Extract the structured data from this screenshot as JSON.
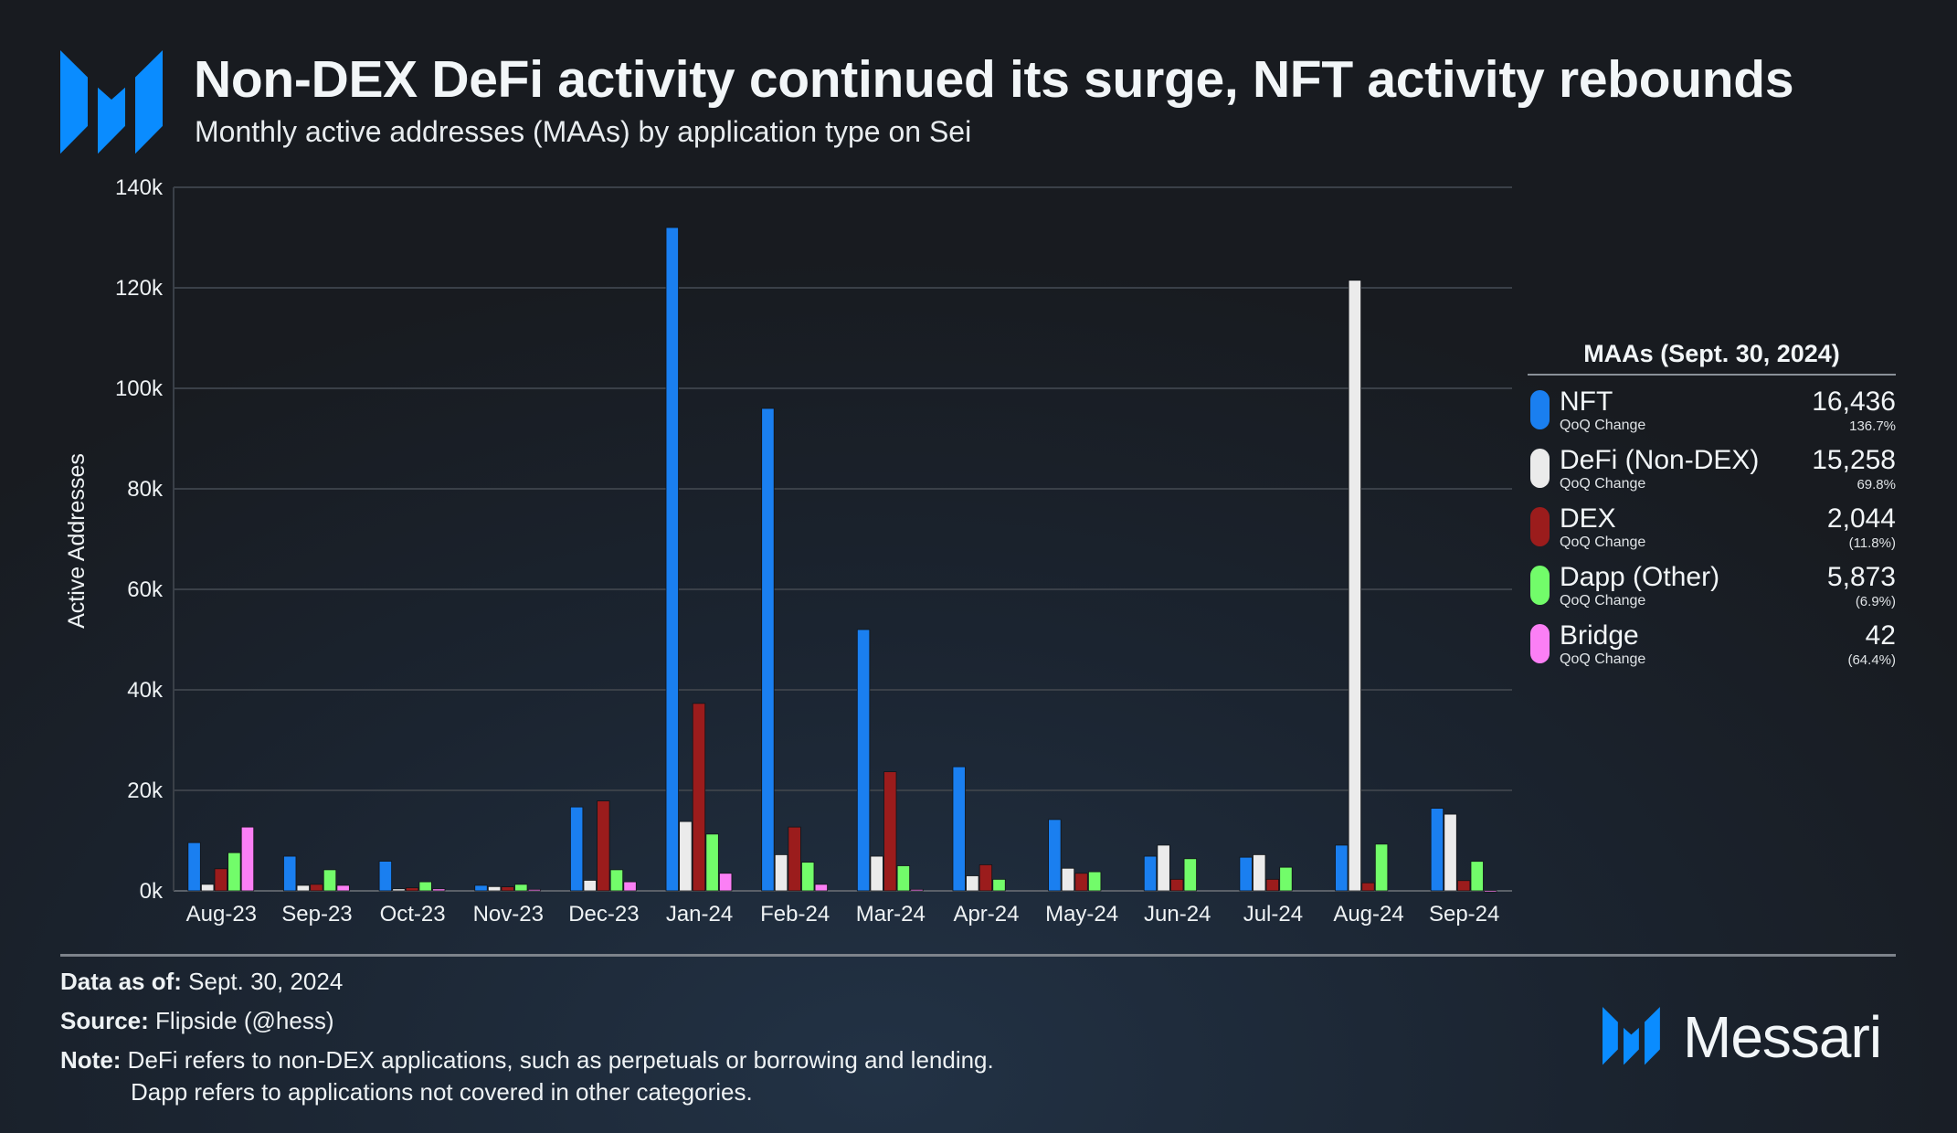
{
  "header": {
    "title": "Non-DEX DeFi activity continued its surge, NFT activity rebounds",
    "subtitle": "Monthly active addresses (MAAs) by application type on Sei",
    "logo": "Messari M logo"
  },
  "chart_data": {
    "type": "bar",
    "title": "Non-DEX DeFi activity continued its surge, NFT activity rebounds",
    "subtitle": "Monthly active addresses (MAAs) by application type on Sei",
    "xlabel": "",
    "ylabel": "Active Addresses",
    "ylim": [
      0,
      140000
    ],
    "yticks": [
      0,
      20000,
      40000,
      60000,
      80000,
      100000,
      120000,
      140000
    ],
    "ytick_labels": [
      "0k",
      "20k",
      "40k",
      "60k",
      "80k",
      "100k",
      "120k",
      "140k"
    ],
    "grid": true,
    "categories": [
      "Aug-23",
      "Sep-23",
      "Oct-23",
      "Nov-23",
      "Dec-23",
      "Jan-24",
      "Feb-24",
      "Mar-24",
      "Apr-24",
      "May-24",
      "Jun-24",
      "Jul-24",
      "Aug-24",
      "Sep-24"
    ],
    "series": [
      {
        "name": "NFT",
        "color": "#1a7ff0",
        "values": [
          9600,
          6900,
          5900,
          1100,
          16700,
          132000,
          96000,
          52000,
          24700,
          14200,
          6900,
          6700,
          9100,
          16436
        ]
      },
      {
        "name": "DeFi (Non-DEX)",
        "color": "#ebebeb",
        "values": [
          1300,
          1100,
          400,
          850,
          2100,
          13800,
          7200,
          6900,
          3000,
          4500,
          9100,
          7200,
          121500,
          15258
        ]
      },
      {
        "name": "DEX",
        "color": "#9b1c1c",
        "values": [
          4400,
          1300,
          600,
          800,
          17900,
          37300,
          12700,
          23700,
          5200,
          3500,
          2300,
          2300,
          1600,
          2044
        ]
      },
      {
        "name": "Dapp (Other)",
        "color": "#72fc6a",
        "values": [
          7600,
          4200,
          1800,
          1300,
          4200,
          11300,
          5700,
          5000,
          2300,
          3800,
          6400,
          4700,
          9300,
          5873
        ]
      },
      {
        "name": "Bridge",
        "color": "#fb7ff5",
        "values": [
          12700,
          1100,
          400,
          300,
          1800,
          3500,
          1300,
          300,
          0,
          0,
          0,
          0,
          0,
          42
        ]
      }
    ],
    "legend": "right"
  },
  "legend": {
    "title": "MAAs (Sept. 30, 2024)",
    "qoq_label": "QoQ Change",
    "items": [
      {
        "name": "NFT",
        "value": "16,436",
        "change": "136.7%",
        "color": "#1a7ff0"
      },
      {
        "name": "DeFi (Non-DEX)",
        "value": "15,258",
        "change": "69.8%",
        "color": "#ebebeb"
      },
      {
        "name": "DEX",
        "value": "2,044",
        "change": "(11.8%)",
        "color": "#9b1c1c"
      },
      {
        "name": "Dapp (Other)",
        "value": "5,873",
        "change": "(6.9%)",
        "color": "#72fc6a"
      },
      {
        "name": "Bridge",
        "value": "42",
        "change": "(64.4%)",
        "color": "#fb7ff5"
      }
    ]
  },
  "footer": {
    "data_as_of_label": "Data as of:",
    "data_as_of": "Sept. 30, 2024",
    "source_label": "Source:",
    "source": "Flipside (@hess)",
    "note_label": "Note:",
    "note_line1": "DeFi refers to non-DEX applications, such as perpetuals or borrowing and lending.",
    "note_line2": "Dapp refers to applications not covered in other categories.",
    "brand": "Messari"
  },
  "colors": {
    "accent": "#0a8cff",
    "background": "#1b2430"
  }
}
